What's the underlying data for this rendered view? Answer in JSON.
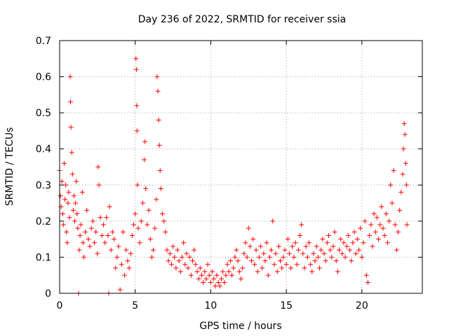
{
  "chart_data": {
    "type": "scatter",
    "title": "Day 236 of 2022, SRMTID for receiver ssia",
    "xlabel": "GPS time / hours",
    "ylabel": "SRMTID / TECUs",
    "xlim": [
      0,
      24
    ],
    "ylim": [
      0,
      0.7
    ],
    "xticks": [
      0,
      5,
      10,
      15,
      20
    ],
    "xtick_labels": [
      "0",
      "5",
      "10",
      "15",
      "20"
    ],
    "yticks": [
      0,
      0.1,
      0.2,
      0.3,
      0.4,
      0.5,
      0.6,
      0.7
    ],
    "ytick_labels": [
      "0",
      "0.1",
      "0.2",
      "0.3",
      "0.4",
      "0.5",
      "0.6",
      "0.7"
    ],
    "grid": true,
    "marker": "+",
    "marker_color": "#ff0000",
    "series": [
      {
        "name": "SRMTID",
        "points": [
          [
            0.0,
            0.34
          ],
          [
            0.05,
            0.27
          ],
          [
            0.1,
            0.24
          ],
          [
            0.15,
            0.31
          ],
          [
            0.2,
            0.22
          ],
          [
            0.25,
            0.19
          ],
          [
            0.3,
            0.36
          ],
          [
            0.35,
            0.26
          ],
          [
            0.4,
            0.3
          ],
          [
            0.45,
            0.17
          ],
          [
            0.5,
            0.14
          ],
          [
            0.55,
            0.25
          ],
          [
            0.6,
            0.28
          ],
          [
            0.65,
            0.21
          ],
          [
            0.7,
            0.6
          ],
          [
            0.72,
            0.53
          ],
          [
            0.75,
            0.46
          ],
          [
            0.8,
            0.39
          ],
          [
            0.85,
            0.33
          ],
          [
            0.9,
            0.23
          ],
          [
            0.95,
            0.27
          ],
          [
            1.0,
            0.2
          ],
          [
            1.05,
            0.25
          ],
          [
            1.1,
            0.31
          ],
          [
            1.15,
            0.22
          ],
          [
            1.2,
            0.18
          ],
          [
            1.25,
            0.0
          ],
          [
            1.3,
            0.12
          ],
          [
            1.35,
            0.16
          ],
          [
            1.4,
            0.19
          ],
          [
            1.5,
            0.28
          ],
          [
            1.55,
            0.14
          ],
          [
            1.6,
            0.1
          ],
          [
            1.7,
            0.17
          ],
          [
            1.8,
            0.23
          ],
          [
            1.9,
            0.15
          ],
          [
            2.0,
            0.13
          ],
          [
            2.1,
            0.18
          ],
          [
            2.2,
            0.2
          ],
          [
            2.3,
            0.14
          ],
          [
            2.4,
            0.17
          ],
          [
            2.5,
            0.11
          ],
          [
            2.55,
            0.35
          ],
          [
            2.6,
            0.3
          ],
          [
            2.7,
            0.21
          ],
          [
            2.8,
            0.16
          ],
          [
            2.9,
            0.19
          ],
          [
            3.0,
            0.14
          ],
          [
            3.1,
            0.21
          ],
          [
            3.2,
            0.16
          ],
          [
            3.25,
            0.0
          ],
          [
            3.3,
            0.24
          ],
          [
            3.4,
            0.12
          ],
          [
            3.5,
            0.17
          ],
          [
            3.6,
            0.15
          ],
          [
            3.7,
            0.07
          ],
          [
            3.8,
            0.1
          ],
          [
            3.9,
            0.13
          ],
          [
            4.0,
            0.01
          ],
          [
            4.1,
            0.08
          ],
          [
            4.2,
            0.17
          ],
          [
            4.3,
            0.05
          ],
          [
            4.4,
            0.12
          ],
          [
            4.5,
            0.09
          ],
          [
            4.6,
            0.07
          ],
          [
            4.7,
            0.11
          ],
          [
            4.8,
            0.16
          ],
          [
            4.9,
            0.19
          ],
          [
            5.0,
            0.22
          ],
          [
            5.05,
            0.65
          ],
          [
            5.08,
            0.62
          ],
          [
            5.1,
            0.52
          ],
          [
            5.12,
            0.45
          ],
          [
            5.15,
            0.3
          ],
          [
            5.2,
            0.18
          ],
          [
            5.3,
            0.14
          ],
          [
            5.4,
            0.2
          ],
          [
            5.5,
            0.25
          ],
          [
            5.6,
            0.37
          ],
          [
            5.65,
            0.42
          ],
          [
            5.7,
            0.29
          ],
          [
            5.8,
            0.19
          ],
          [
            5.9,
            0.23
          ],
          [
            6.0,
            0.15
          ],
          [
            6.1,
            0.1
          ],
          [
            6.2,
            0.12
          ],
          [
            6.3,
            0.18
          ],
          [
            6.4,
            0.26
          ],
          [
            6.45,
            0.6
          ],
          [
            6.5,
            0.56
          ],
          [
            6.55,
            0.48
          ],
          [
            6.6,
            0.41
          ],
          [
            6.65,
            0.34
          ],
          [
            6.7,
            0.29
          ],
          [
            6.8,
            0.22
          ],
          [
            6.9,
            0.2
          ],
          [
            7.0,
            0.17
          ],
          [
            7.1,
            0.12
          ],
          [
            7.2,
            0.09
          ],
          [
            7.3,
            0.11
          ],
          [
            7.4,
            0.08
          ],
          [
            7.5,
            0.13
          ],
          [
            7.6,
            0.1
          ],
          [
            7.7,
            0.07
          ],
          [
            7.8,
            0.12
          ],
          [
            7.9,
            0.09
          ],
          [
            8.0,
            0.06
          ],
          [
            8.1,
            0.1
          ],
          [
            8.2,
            0.14
          ],
          [
            8.3,
            0.08
          ],
          [
            8.4,
            0.11
          ],
          [
            8.5,
            0.07
          ],
          [
            8.6,
            0.1
          ],
          [
            8.7,
            0.05
          ],
          [
            8.8,
            0.09
          ],
          [
            8.9,
            0.12
          ],
          [
            9.0,
            0.08
          ],
          [
            9.1,
            0.06
          ],
          [
            9.2,
            0.04
          ],
          [
            9.3,
            0.07
          ],
          [
            9.4,
            0.05
          ],
          [
            9.5,
            0.03
          ],
          [
            9.6,
            0.06
          ],
          [
            9.7,
            0.04
          ],
          [
            9.8,
            0.08
          ],
          [
            9.9,
            0.05
          ],
          [
            10.0,
            0.03
          ],
          [
            10.1,
            0.06
          ],
          [
            10.2,
            0.04
          ],
          [
            10.3,
            0.02
          ],
          [
            10.4,
            0.05
          ],
          [
            10.5,
            0.03
          ],
          [
            10.6,
            0.02
          ],
          [
            10.7,
            0.04
          ],
          [
            10.8,
            0.06
          ],
          [
            10.9,
            0.03
          ],
          [
            11.0,
            0.05
          ],
          [
            11.1,
            0.08
          ],
          [
            11.2,
            0.06
          ],
          [
            11.3,
            0.09
          ],
          [
            11.4,
            0.05
          ],
          [
            11.5,
            0.07
          ],
          [
            11.6,
            0.1
          ],
          [
            11.7,
            0.12
          ],
          [
            11.8,
            0.09
          ],
          [
            11.9,
            0.06
          ],
          [
            12.0,
            0.04
          ],
          [
            12.1,
            0.07
          ],
          [
            12.2,
            0.11
          ],
          [
            12.3,
            0.14
          ],
          [
            12.4,
            0.1
          ],
          [
            12.5,
            0.18
          ],
          [
            12.6,
            0.13
          ],
          [
            12.7,
            0.09
          ],
          [
            12.8,
            0.15
          ],
          [
            12.9,
            0.08
          ],
          [
            13.0,
            0.12
          ],
          [
            13.1,
            0.06
          ],
          [
            13.2,
            0.1
          ],
          [
            13.3,
            0.13
          ],
          [
            13.4,
            0.07
          ],
          [
            13.5,
            0.11
          ],
          [
            13.6,
            0.09
          ],
          [
            13.7,
            0.14
          ],
          [
            13.8,
            0.05
          ],
          [
            13.9,
            0.1
          ],
          [
            14.0,
            0.12
          ],
          [
            14.1,
            0.2
          ],
          [
            14.2,
            0.08
          ],
          [
            14.3,
            0.11
          ],
          [
            14.4,
            0.06
          ],
          [
            14.5,
            0.13
          ],
          [
            14.6,
            0.09
          ],
          [
            14.7,
            0.07
          ],
          [
            14.8,
            0.1
          ],
          [
            14.9,
            0.12
          ],
          [
            15.0,
            0.08
          ],
          [
            15.1,
            0.15
          ],
          [
            15.2,
            0.11
          ],
          [
            15.3,
            0.07
          ],
          [
            15.4,
            0.13
          ],
          [
            15.5,
            0.1
          ],
          [
            15.6,
            0.14
          ],
          [
            15.7,
            0.08
          ],
          [
            15.8,
            0.12
          ],
          [
            15.9,
            0.16
          ],
          [
            16.0,
            0.19
          ],
          [
            16.1,
            0.11
          ],
          [
            16.2,
            0.07
          ],
          [
            16.3,
            0.13
          ],
          [
            16.4,
            0.1
          ],
          [
            16.5,
            0.14
          ],
          [
            16.6,
            0.08
          ],
          [
            16.7,
            0.06
          ],
          [
            16.8,
            0.11
          ],
          [
            16.9,
            0.09
          ],
          [
            17.0,
            0.13
          ],
          [
            17.1,
            0.1
          ],
          [
            17.2,
            0.07
          ],
          [
            17.3,
            0.12
          ],
          [
            17.4,
            0.15
          ],
          [
            17.5,
            0.11
          ],
          [
            17.6,
            0.09
          ],
          [
            17.7,
            0.14
          ],
          [
            17.8,
            0.16
          ],
          [
            17.9,
            0.12
          ],
          [
            18.0,
            0.1
          ],
          [
            18.1,
            0.13
          ],
          [
            18.2,
            0.17
          ],
          [
            18.3,
            0.09
          ],
          [
            18.4,
            0.06
          ],
          [
            18.5,
            0.12
          ],
          [
            18.6,
            0.15
          ],
          [
            18.7,
            0.11
          ],
          [
            18.8,
            0.14
          ],
          [
            18.9,
            0.1
          ],
          [
            19.0,
            0.13
          ],
          [
            19.1,
            0.16
          ],
          [
            19.2,
            0.12
          ],
          [
            19.3,
            0.09
          ],
          [
            19.4,
            0.14
          ],
          [
            19.5,
            0.17
          ],
          [
            19.6,
            0.11
          ],
          [
            19.7,
            0.15
          ],
          [
            19.8,
            0.12
          ],
          [
            19.9,
            0.18
          ],
          [
            20.0,
            0.1
          ],
          [
            20.1,
            0.14
          ],
          [
            20.2,
            0.2
          ],
          [
            20.3,
            0.05
          ],
          [
            20.4,
            0.03
          ],
          [
            20.5,
            0.16
          ],
          [
            20.6,
            0.19
          ],
          [
            20.7,
            0.13
          ],
          [
            20.8,
            0.22
          ],
          [
            20.9,
            0.17
          ],
          [
            21.0,
            0.21
          ],
          [
            21.1,
            0.15
          ],
          [
            21.2,
            0.19
          ],
          [
            21.3,
            0.24
          ],
          [
            21.4,
            0.18
          ],
          [
            21.5,
            0.16
          ],
          [
            21.6,
            0.22
          ],
          [
            21.7,
            0.14
          ],
          [
            21.8,
            0.2
          ],
          [
            21.9,
            0.3
          ],
          [
            22.0,
            0.25
          ],
          [
            22.1,
            0.34
          ],
          [
            22.2,
            0.19
          ],
          [
            22.3,
            0.12
          ],
          [
            22.4,
            0.17
          ],
          [
            22.5,
            0.23
          ],
          [
            22.6,
            0.28
          ],
          [
            22.7,
            0.33
          ],
          [
            22.75,
            0.4
          ],
          [
            22.8,
            0.47
          ],
          [
            22.85,
            0.44
          ],
          [
            22.9,
            0.36
          ],
          [
            22.95,
            0.3
          ],
          [
            22.98,
            0.19
          ]
        ]
      }
    ]
  }
}
